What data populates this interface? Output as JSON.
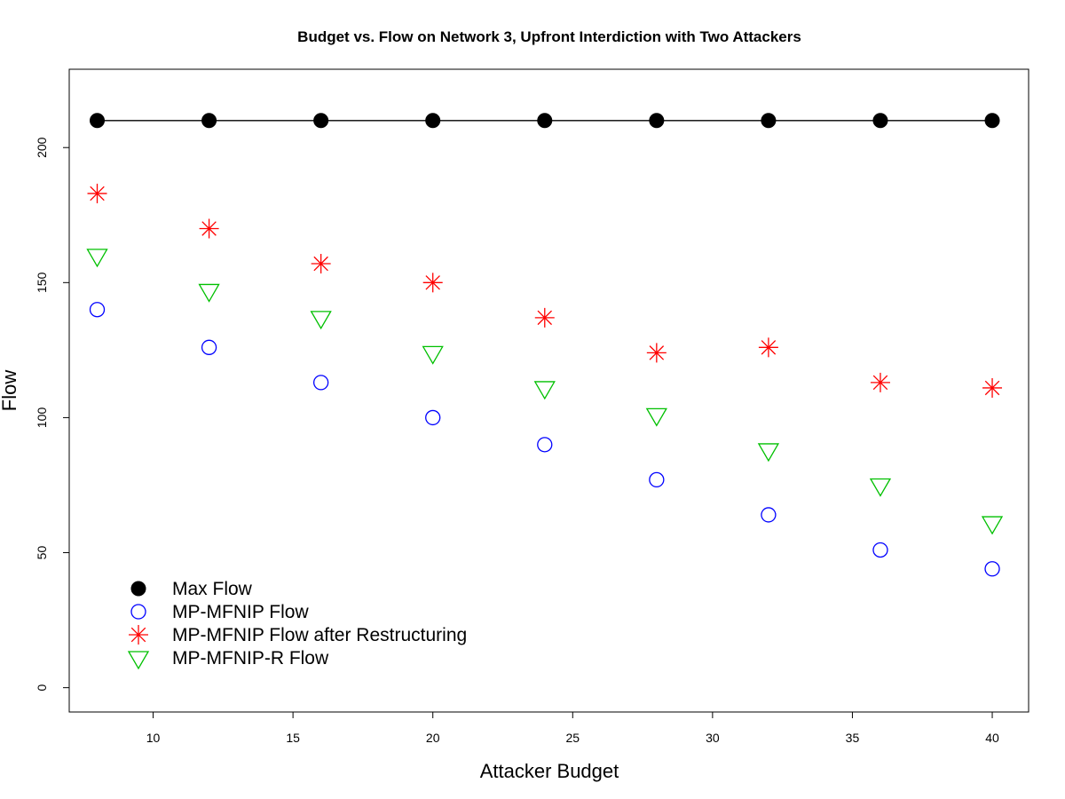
{
  "chart_data": {
    "type": "scatter",
    "title": "Budget vs. Flow on Network 3, Upfront Interdiction with Two Attackers",
    "xlabel": "Attacker Budget",
    "ylabel": "Flow",
    "xlim": [
      7,
      41.3
    ],
    "ylim": [
      -9,
      229
    ],
    "x_ticks": [
      10,
      15,
      20,
      25,
      30,
      35,
      40
    ],
    "y_ticks": [
      0,
      50,
      100,
      150,
      200
    ],
    "grid": false,
    "legend_position": "bottom-left",
    "x": [
      8,
      12,
      16,
      20,
      24,
      28,
      32,
      36,
      40
    ],
    "series": [
      {
        "name": "Max Flow",
        "marker": "filled-circle",
        "color": "#000000",
        "connected": true,
        "values": [
          210,
          210,
          210,
          210,
          210,
          210,
          210,
          210,
          210
        ]
      },
      {
        "name": "MP-MFNIP Flow",
        "marker": "open-circle",
        "color": "#0000ff",
        "connected": false,
        "values": [
          140,
          126,
          113,
          100,
          90,
          77,
          64,
          51,
          44
        ]
      },
      {
        "name": "MP-MFNIP Flow after Restructuring",
        "marker": "asterisk",
        "color": "#ff0000",
        "connected": false,
        "values": [
          183,
          170,
          157,
          150,
          137,
          124,
          126,
          113,
          111
        ]
      },
      {
        "name": "MP-MFNIP-R Flow",
        "marker": "open-triangle-down",
        "color": "#00c000",
        "connected": false,
        "values": [
          160,
          147,
          137,
          124,
          111,
          101,
          88,
          75,
          61
        ]
      }
    ]
  }
}
